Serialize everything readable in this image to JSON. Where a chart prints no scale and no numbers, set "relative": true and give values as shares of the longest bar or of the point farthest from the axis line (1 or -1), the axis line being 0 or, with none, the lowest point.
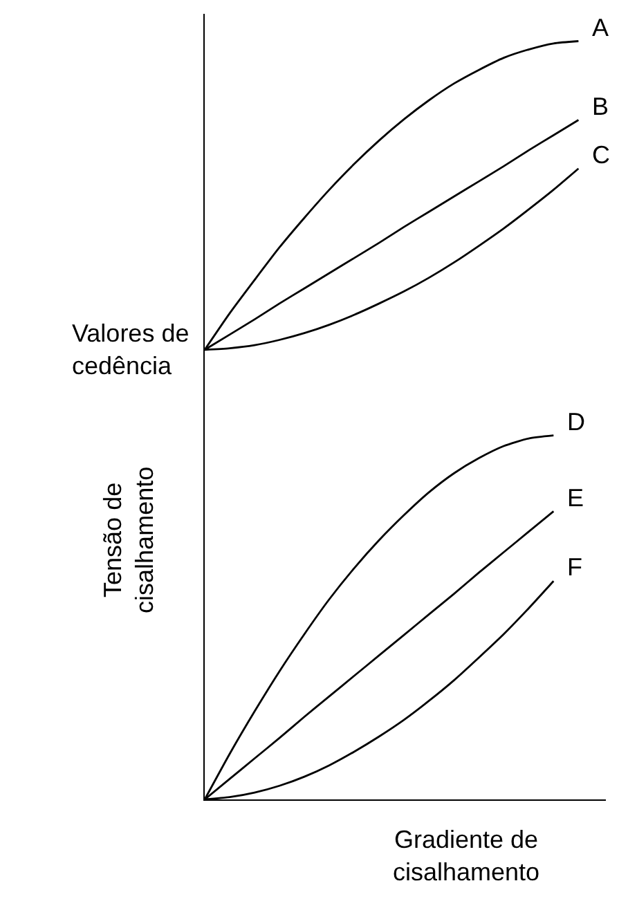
{
  "chart_data": {
    "type": "line",
    "relative": true,
    "xlabel": "Gradiente de\ncisalhamento",
    "ylabel": "Tensão de\ncisalhamento",
    "legend": false,
    "marker": "none",
    "line_style": "solid",
    "categories": [
      null,
      null,
      null,
      null,
      null,
      null,
      null,
      null,
      null,
      null,
      null,
      null,
      null,
      null,
      null,
      null
    ],
    "annotations": [
      "Valores de\ncedência"
    ],
    "series": [
      {
        "name": "A",
        "color": "#000000",
        "values": [
          0.593,
          0.641,
          0.685,
          0.728,
          0.767,
          0.804,
          0.838,
          0.869,
          0.897,
          0.922,
          0.944,
          0.962,
          0.978,
          0.989,
          0.997,
          1
        ]
      },
      {
        "name": "B",
        "color": "#000000",
        "values": [
          0.593,
          0.613,
          0.633,
          0.654,
          0.674,
          0.694,
          0.714,
          0.734,
          0.755,
          0.775,
          0.795,
          0.815,
          0.835,
          0.856,
          0.876,
          0.896
        ]
      },
      {
        "name": "C",
        "color": "#000000",
        "values": [
          0.593,
          0.595,
          0.599,
          0.606,
          0.615,
          0.626,
          0.639,
          0.654,
          0.67,
          0.688,
          0.708,
          0.73,
          0.753,
          0.778,
          0.804,
          0.832
        ]
      },
      {
        "name": "D",
        "color": "#000000",
        "values": [
          0,
          0.06,
          0.116,
          0.169,
          0.218,
          0.264,
          0.305,
          0.342,
          0.375,
          0.405,
          0.43,
          0.45,
          0.466,
          0.476,
          0.48,
          null
        ]
      },
      {
        "name": "E",
        "color": "#000000",
        "values": [
          0,
          0.027,
          0.054,
          0.081,
          0.109,
          0.136,
          0.163,
          0.19,
          0.217,
          0.244,
          0.271,
          0.299,
          0.326,
          0.353,
          0.38,
          null
        ]
      },
      {
        "name": "F",
        "color": "#000000",
        "values": [
          0,
          0.003,
          0.009,
          0.018,
          0.03,
          0.045,
          0.063,
          0.083,
          0.105,
          0.13,
          0.157,
          0.187,
          0.218,
          0.252,
          0.288,
          null
        ]
      }
    ]
  }
}
